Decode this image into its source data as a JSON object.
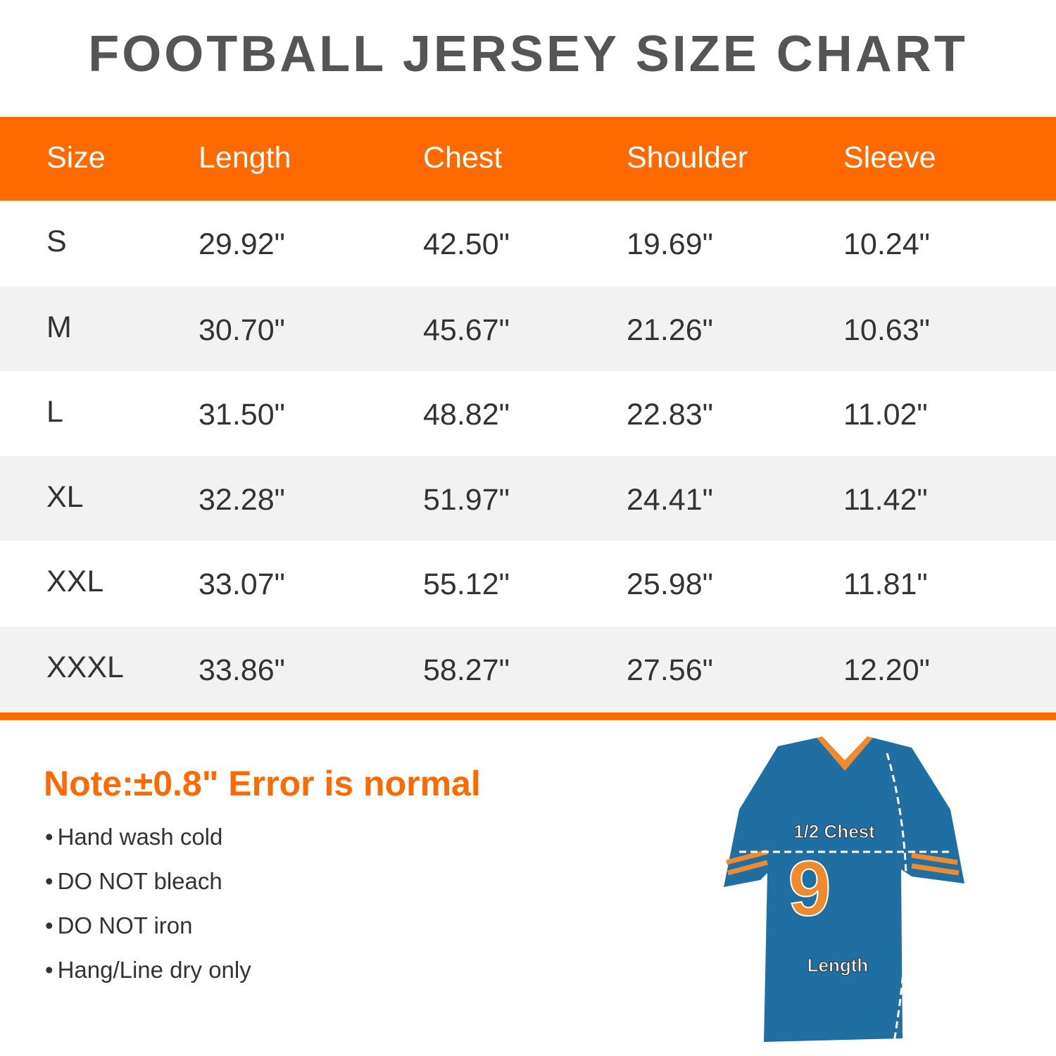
{
  "header": {
    "title": "FOOTBALL JERSEY SIZE CHART"
  },
  "table": {
    "columns": [
      "Size",
      "Length",
      "Chest",
      "Shoulder",
      "Sleeve"
    ],
    "rows": [
      [
        "S",
        "29.92\"",
        "42.50\"",
        "19.69\"",
        "10.24\""
      ],
      [
        "M",
        "30.70\"",
        "45.67\"",
        "21.26\"",
        "10.63\""
      ],
      [
        "L",
        "31.50\"",
        "48.82\"",
        "22.83\"",
        "11.02\""
      ],
      [
        "XL",
        "32.28\"",
        "51.97\"",
        "24.41\"",
        "11.42\""
      ],
      [
        "XXL",
        "33.07\"",
        "55.12\"",
        "25.98\"",
        "11.81\""
      ],
      [
        "XXXL",
        "33.86\"",
        "58.27\"",
        "27.56\"",
        "12.20\""
      ]
    ]
  },
  "note": "Note:±0.8\" Error is normal",
  "care": [
    "Hand wash cold",
    "DO NOT bleach",
    "DO NOT iron",
    "Hang/Line dry only"
  ],
  "jersey": {
    "number": "9",
    "chest_label": "1/2 Chest",
    "length_label": "Length"
  }
}
